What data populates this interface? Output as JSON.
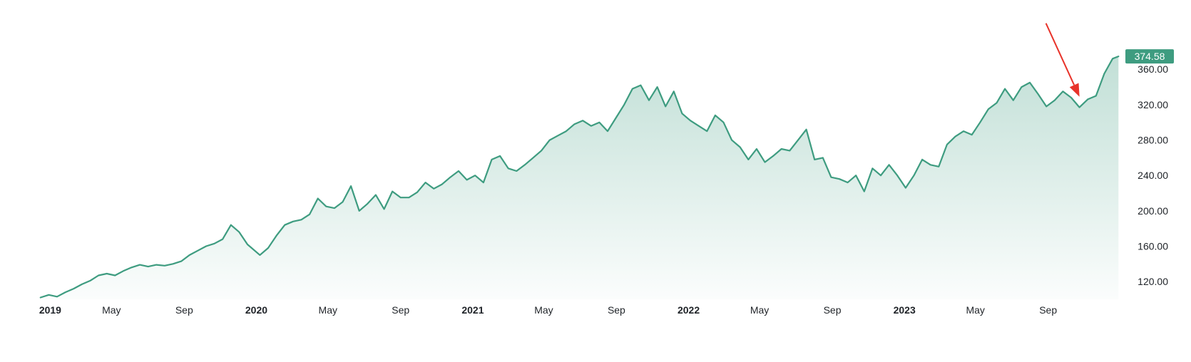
{
  "chart_data": {
    "type": "area",
    "colors": {
      "line": "#3e9c80",
      "fill": "#3e9c80",
      "price_badge": "#3e9c80",
      "annotation_arrow": "#e8332a"
    },
    "grid": false,
    "ylim": [
      100,
      390
    ],
    "xlim": [
      "2018-12-31",
      "2023-12-31"
    ],
    "y_ticks": [
      "120.00",
      "160.00",
      "200.00",
      "240.00",
      "280.00",
      "320.00",
      "360.00"
    ],
    "x_ticks": [
      {
        "label": "2019",
        "date": "2019-01-01",
        "bold": true
      },
      {
        "label": "May",
        "date": "2019-05-01",
        "bold": false
      },
      {
        "label": "Sep",
        "date": "2019-09-01",
        "bold": false
      },
      {
        "label": "2020",
        "date": "2020-01-01",
        "bold": true
      },
      {
        "label": "May",
        "date": "2020-05-01",
        "bold": false
      },
      {
        "label": "Sep",
        "date": "2020-09-01",
        "bold": false
      },
      {
        "label": "2021",
        "date": "2021-01-01",
        "bold": true
      },
      {
        "label": "May",
        "date": "2021-05-01",
        "bold": false
      },
      {
        "label": "Sep",
        "date": "2021-09-01",
        "bold": false
      },
      {
        "label": "2022",
        "date": "2022-01-01",
        "bold": true
      },
      {
        "label": "May",
        "date": "2022-05-01",
        "bold": false
      },
      {
        "label": "Sep",
        "date": "2022-09-01",
        "bold": false
      },
      {
        "label": "2023",
        "date": "2023-01-01",
        "bold": true
      },
      {
        "label": "May",
        "date": "2023-05-01",
        "bold": false
      },
      {
        "label": "Sep",
        "date": "2023-09-01",
        "bold": false
      }
    ],
    "last_price_label": "374.58",
    "series": [
      {
        "x": [
          "2019-01-01",
          "2019-01-15",
          "2019-01-29",
          "2019-02-12",
          "2019-02-26",
          "2019-03-12",
          "2019-03-26",
          "2019-04-09",
          "2019-04-23",
          "2019-05-07",
          "2019-05-21",
          "2019-06-04",
          "2019-06-18",
          "2019-07-02",
          "2019-07-16",
          "2019-07-30",
          "2019-08-13",
          "2019-08-27",
          "2019-09-10",
          "2019-09-24",
          "2019-10-08",
          "2019-10-22",
          "2019-11-05",
          "2019-11-19",
          "2019-12-03",
          "2019-12-17",
          "2020-01-07",
          "2020-01-21",
          "2020-02-04",
          "2020-02-18",
          "2020-03-03",
          "2020-03-17",
          "2020-03-31",
          "2020-04-14",
          "2020-04-28",
          "2020-05-12",
          "2020-05-26",
          "2020-06-09",
          "2020-06-23",
          "2020-07-07",
          "2020-07-21",
          "2020-08-04",
          "2020-08-18",
          "2020-09-01",
          "2020-09-15",
          "2020-09-29",
          "2020-10-13",
          "2020-10-27",
          "2020-11-10",
          "2020-11-24",
          "2020-12-08",
          "2020-12-22",
          "2021-01-05",
          "2021-01-19",
          "2021-02-02",
          "2021-02-16",
          "2021-03-02",
          "2021-03-16",
          "2021-03-30",
          "2021-04-13",
          "2021-04-27",
          "2021-05-11",
          "2021-05-25",
          "2021-06-08",
          "2021-06-22",
          "2021-07-06",
          "2021-07-20",
          "2021-08-03",
          "2021-08-17",
          "2021-08-31",
          "2021-09-14",
          "2021-09-28",
          "2021-10-12",
          "2021-10-26",
          "2021-11-09",
          "2021-11-23",
          "2021-12-07",
          "2021-12-21",
          "2022-01-04",
          "2022-01-18",
          "2022-02-01",
          "2022-02-15",
          "2022-03-01",
          "2022-03-15",
          "2022-03-29",
          "2022-04-12",
          "2022-04-26",
          "2022-05-10",
          "2022-05-24",
          "2022-06-07",
          "2022-06-21",
          "2022-07-05",
          "2022-07-19",
          "2022-08-02",
          "2022-08-16",
          "2022-08-30",
          "2022-09-13",
          "2022-09-27",
          "2022-10-11",
          "2022-10-25",
          "2022-11-08",
          "2022-11-22",
          "2022-12-06",
          "2022-12-20",
          "2023-01-03",
          "2023-01-17",
          "2023-01-31",
          "2023-02-14",
          "2023-02-28",
          "2023-03-14",
          "2023-03-28",
          "2023-04-11",
          "2023-04-25",
          "2023-05-09",
          "2023-05-23",
          "2023-06-06",
          "2023-06-20",
          "2023-07-04",
          "2023-07-18",
          "2023-08-01",
          "2023-08-15",
          "2023-08-29",
          "2023-09-12",
          "2023-09-26",
          "2023-10-10",
          "2023-10-24",
          "2023-11-07",
          "2023-11-21",
          "2023-12-05",
          "2023-12-19",
          "2023-12-29"
        ],
        "values": [
          102,
          105,
          103,
          108,
          112,
          117,
          121,
          127,
          129,
          127,
          132,
          136,
          139,
          137,
          139,
          138,
          140,
          143,
          150,
          155,
          160,
          163,
          168,
          184,
          176,
          162,
          150,
          158,
          172,
          184,
          188,
          190,
          196,
          214,
          205,
          203,
          210,
          228,
          200,
          208,
          218,
          202,
          222,
          215,
          215,
          221,
          232,
          225,
          230,
          238,
          245,
          235,
          240,
          232,
          258,
          262,
          248,
          245,
          252,
          260,
          268,
          280,
          285,
          290,
          298,
          302,
          296,
          300,
          290,
          305,
          320,
          338,
          342,
          325,
          340,
          318,
          335,
          310,
          302,
          296,
          290,
          308,
          300,
          280,
          272,
          258,
          270,
          255,
          262,
          270,
          268,
          280,
          292,
          258,
          260,
          238,
          236,
          232,
          240,
          222,
          248,
          240,
          252,
          240,
          226,
          240,
          258,
          252,
          250,
          275,
          284,
          290,
          286,
          300,
          315,
          322,
          338,
          325,
          340,
          345,
          332,
          318,
          325,
          335,
          328,
          317,
          326,
          330,
          355,
          372,
          374.58
        ]
      }
    ],
    "annotations": [
      {
        "type": "arrow",
        "target_date": "2023-10-24",
        "target_value": 329
      }
    ]
  }
}
